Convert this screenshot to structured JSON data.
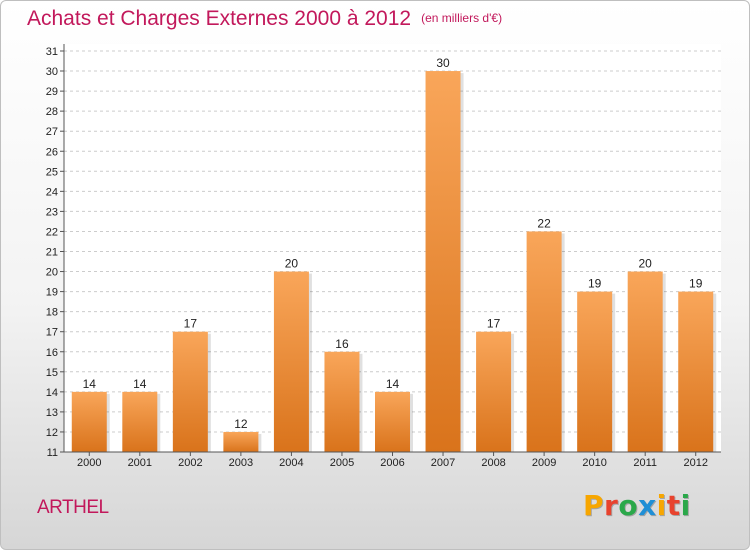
{
  "header": {
    "title": "Achats et Charges Externes 2000 à 2012",
    "subtitle": "(en milliers d'€)"
  },
  "footer": {
    "commune": "ARTHEL",
    "logo_text": "Proxiti",
    "logo_colors": [
      "#f7a600",
      "#e8432e",
      "#2aa84a",
      "#1f8fd6",
      "#f7a600",
      "#e8432e",
      "#2aa84a"
    ]
  },
  "colors": {
    "title": "#c2185b",
    "bar_top": "#f9a65a",
    "bar_bottom": "#d9731b",
    "grid": "#cccccc"
  },
  "chart_data": {
    "type": "bar",
    "title": "Achats et Charges Externes 2000 à 2012",
    "subtitle": "(en milliers d'€)",
    "xlabel": "",
    "ylabel": "",
    "categories": [
      "2000",
      "2001",
      "2002",
      "2003",
      "2004",
      "2005",
      "2006",
      "2007",
      "2008",
      "2009",
      "2010",
      "2011",
      "2012"
    ],
    "values": [
      14,
      14,
      17,
      12,
      20,
      16,
      14,
      30,
      17,
      22,
      19,
      20,
      19
    ],
    "ylim": [
      11,
      31
    ],
    "yticks": [
      11,
      12,
      13,
      14,
      15,
      16,
      17,
      18,
      19,
      20,
      21,
      22,
      23,
      24,
      25,
      26,
      27,
      28,
      29,
      30,
      31
    ],
    "grid": true,
    "legend": "none"
  }
}
